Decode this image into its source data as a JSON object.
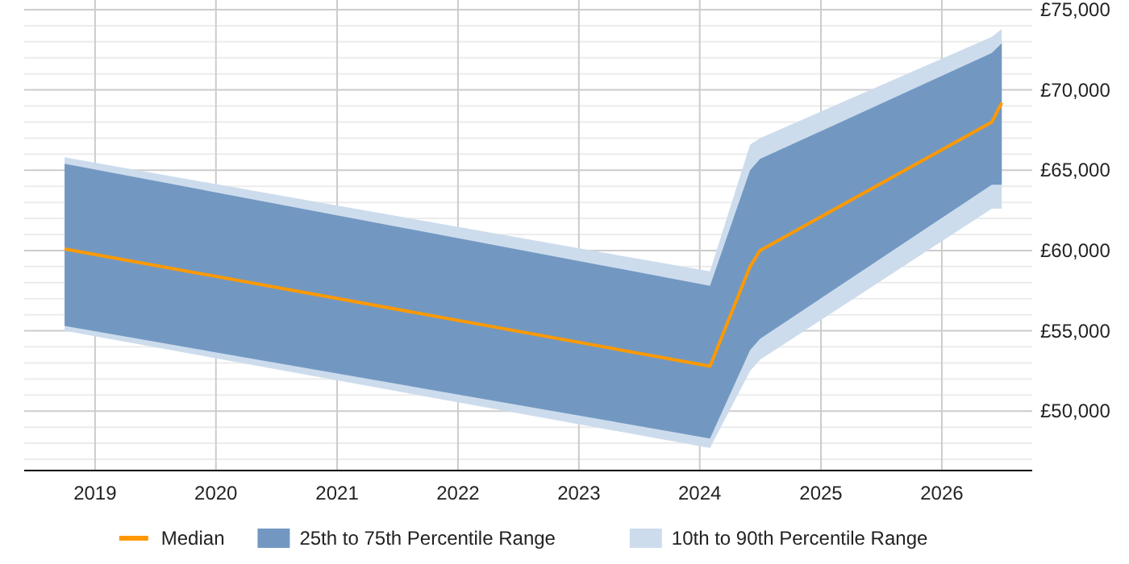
{
  "chart_data": {
    "type": "line",
    "x": [
      "2018-10",
      "2024-02",
      "2024-06",
      "2024-07",
      "2026-06",
      "2026-07"
    ],
    "xlim": [
      "2018-06",
      "2026-10"
    ],
    "xticks": [
      {
        "value": "2019",
        "label": "2019"
      },
      {
        "value": "2020",
        "label": "2020"
      },
      {
        "value": "2021",
        "label": "2021"
      },
      {
        "value": "2022",
        "label": "2022"
      },
      {
        "value": "2023",
        "label": "2023"
      },
      {
        "value": "2024",
        "label": "2024"
      },
      {
        "value": "2025",
        "label": "2025"
      },
      {
        "value": "2026",
        "label": "2026"
      }
    ],
    "ylim": [
      46300,
      75600
    ],
    "yticks": [
      {
        "value": 47000,
        "label": null
      },
      {
        "value": 48000,
        "label": null
      },
      {
        "value": 49000,
        "label": null
      },
      {
        "value": 50000,
        "label": "£50,000"
      },
      {
        "value": 51000,
        "label": null
      },
      {
        "value": 52000,
        "label": null
      },
      {
        "value": 53000,
        "label": null
      },
      {
        "value": 54000,
        "label": null
      },
      {
        "value": 55000,
        "label": "£55,000"
      },
      {
        "value": 56000,
        "label": null
      },
      {
        "value": 57000,
        "label": null
      },
      {
        "value": 58000,
        "label": null
      },
      {
        "value": 59000,
        "label": null
      },
      {
        "value": 60000,
        "label": "£60,000"
      },
      {
        "value": 61000,
        "label": null
      },
      {
        "value": 62000,
        "label": null
      },
      {
        "value": 63000,
        "label": null
      },
      {
        "value": 64000,
        "label": null
      },
      {
        "value": 65000,
        "label": "£65,000"
      },
      {
        "value": 66000,
        "label": null
      },
      {
        "value": 67000,
        "label": null
      },
      {
        "value": 68000,
        "label": null
      },
      {
        "value": 69000,
        "label": null
      },
      {
        "value": 70000,
        "label": "£70,000"
      },
      {
        "value": 71000,
        "label": null
      },
      {
        "value": 72000,
        "label": null
      },
      {
        "value": 73000,
        "label": null
      },
      {
        "value": 74000,
        "label": null
      },
      {
        "value": 75000,
        "label": "£75,000"
      }
    ],
    "grid": true,
    "legend": "bottom",
    "series": [
      {
        "name": "10th to 90th Percentile Range",
        "type": "area",
        "color": "#cddcec",
        "values": [
          null,
          null,
          null,
          null,
          null,
          null
        ],
        "lower": [
          55000,
          47700,
          52500,
          53200,
          62600,
          62600
        ],
        "upper": [
          65800,
          58700,
          66600,
          67000,
          73300,
          73800
        ]
      },
      {
        "name": "25th to 75th Percentile Range",
        "type": "area",
        "color": "#7298c2",
        "values": [
          null,
          null,
          null,
          null,
          null,
          null
        ],
        "lower": [
          55300,
          48300,
          53800,
          54500,
          64100,
          64100
        ],
        "upper": [
          65400,
          57800,
          65000,
          65700,
          72300,
          72900
        ]
      },
      {
        "name": "Median",
        "color": "#ff9900",
        "values": [
          60100,
          52800,
          59000,
          60000,
          68000,
          69200
        ]
      }
    ]
  }
}
